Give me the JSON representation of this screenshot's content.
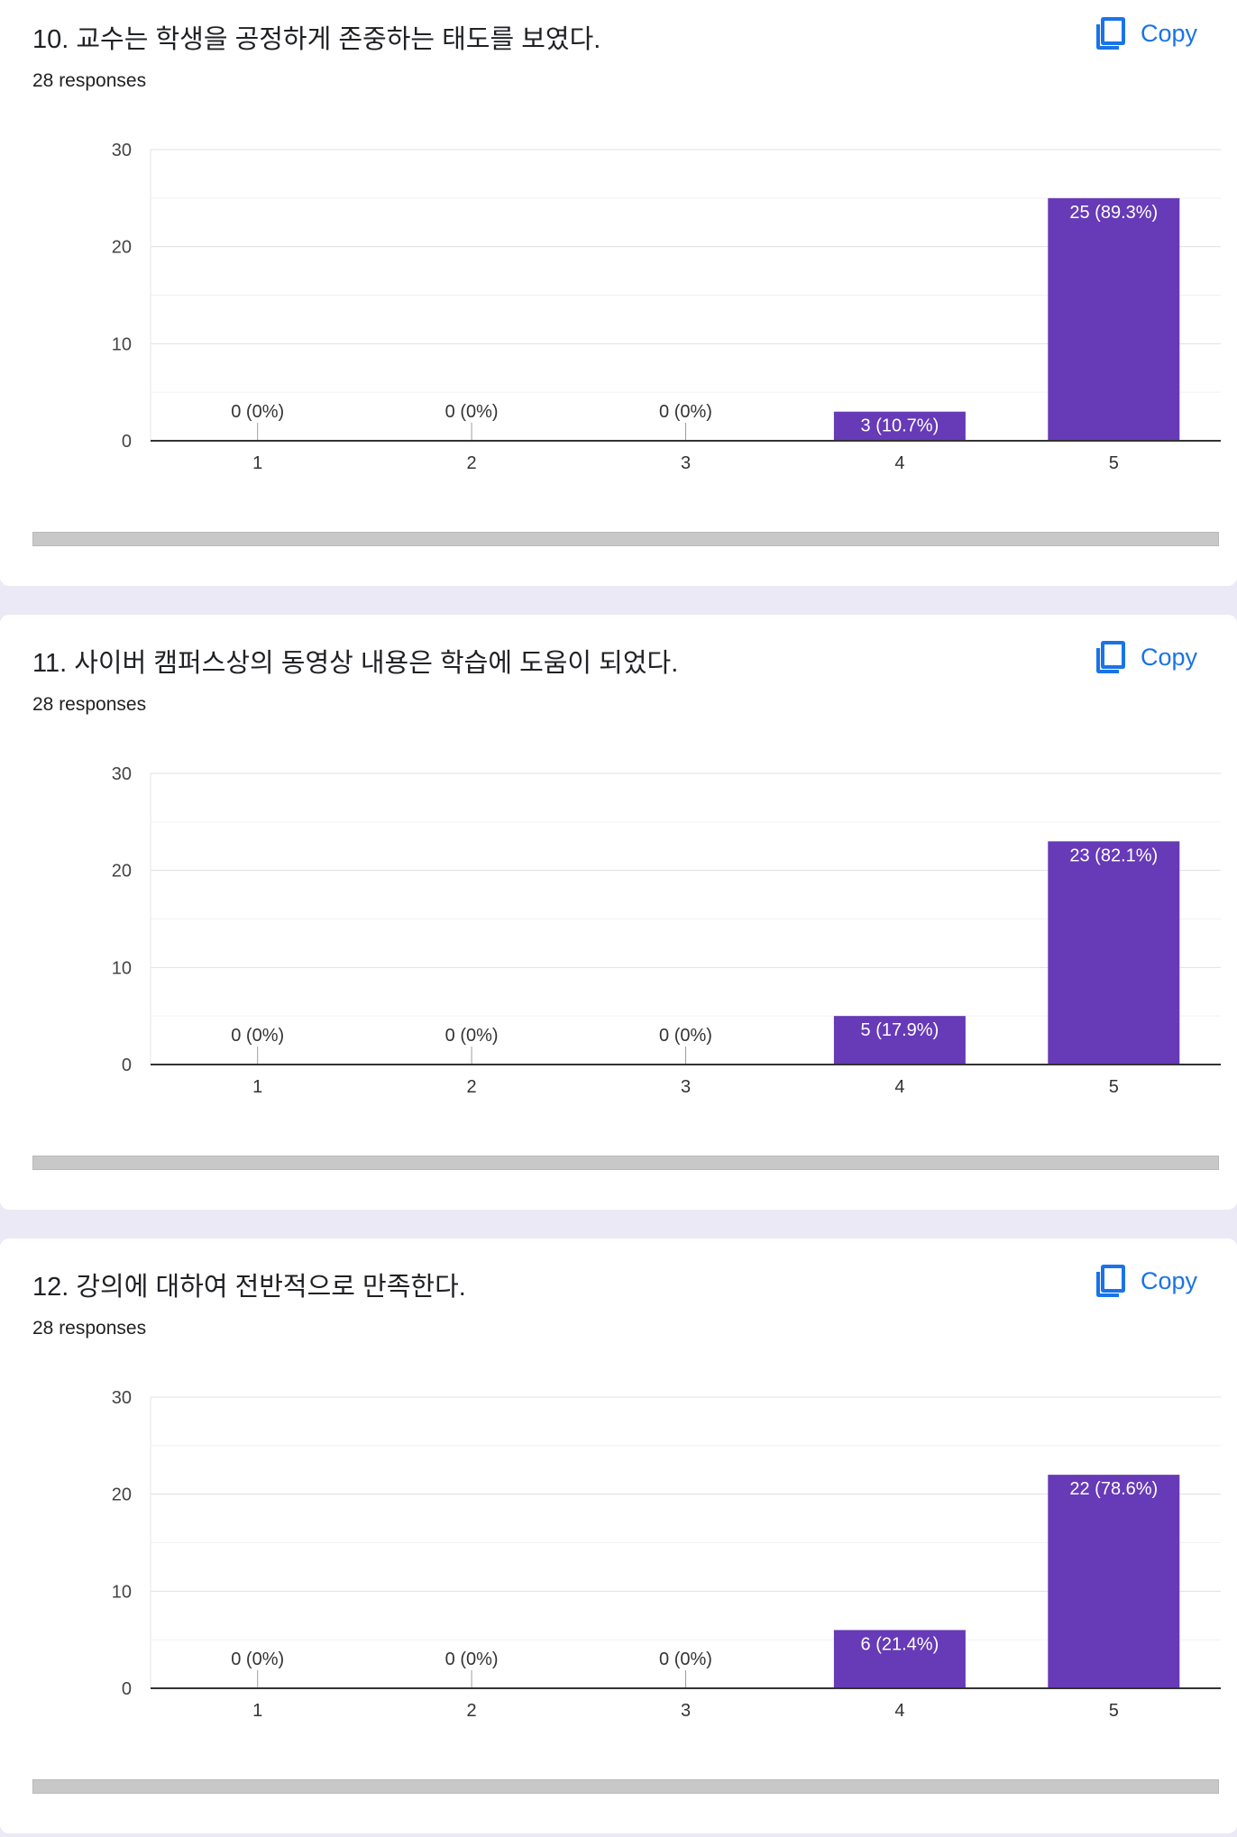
{
  "copy_label": "Copy",
  "colors": {
    "bar": "#673ab7",
    "accent": "#1a73e8",
    "page_bg": "#ece9f6"
  },
  "questions": [
    {
      "title": "10. 교수는 학생을 공정하게 존중하는 태도를 보였다.",
      "responses": "28 responses",
      "chart_data": {
        "type": "bar",
        "categories": [
          "1",
          "2",
          "3",
          "4",
          "5"
        ],
        "values": [
          0,
          0,
          0,
          3,
          25
        ],
        "labels": [
          "0 (0%)",
          "0 (0%)",
          "0 (0%)",
          "3 (10.7%)",
          "25 (89.3%)"
        ],
        "yticks": [
          "0",
          "10",
          "20",
          "30"
        ],
        "ylim": [
          0,
          30
        ],
        "grid": true
      }
    },
    {
      "title": "11. 사이버 캠퍼스상의 동영상 내용은 학습에 도움이 되었다.",
      "responses": "28 responses",
      "chart_data": {
        "type": "bar",
        "categories": [
          "1",
          "2",
          "3",
          "4",
          "5"
        ],
        "values": [
          0,
          0,
          0,
          5,
          23
        ],
        "labels": [
          "0 (0%)",
          "0 (0%)",
          "0 (0%)",
          "5 (17.9%)",
          "23 (82.1%)"
        ],
        "yticks": [
          "0",
          "10",
          "20",
          "30"
        ],
        "ylim": [
          0,
          30
        ],
        "grid": true
      }
    },
    {
      "title": "12. 강의에 대하여 전반적으로 만족한다.",
      "responses": "28 responses",
      "chart_data": {
        "type": "bar",
        "categories": [
          "1",
          "2",
          "3",
          "4",
          "5"
        ],
        "values": [
          0,
          0,
          0,
          6,
          22
        ],
        "labels": [
          "0 (0%)",
          "0 (0%)",
          "0 (0%)",
          "6 (21.4%)",
          "22 (78.6%)"
        ],
        "yticks": [
          "0",
          "10",
          "20",
          "30"
        ],
        "ylim": [
          0,
          30
        ],
        "grid": true
      }
    }
  ]
}
